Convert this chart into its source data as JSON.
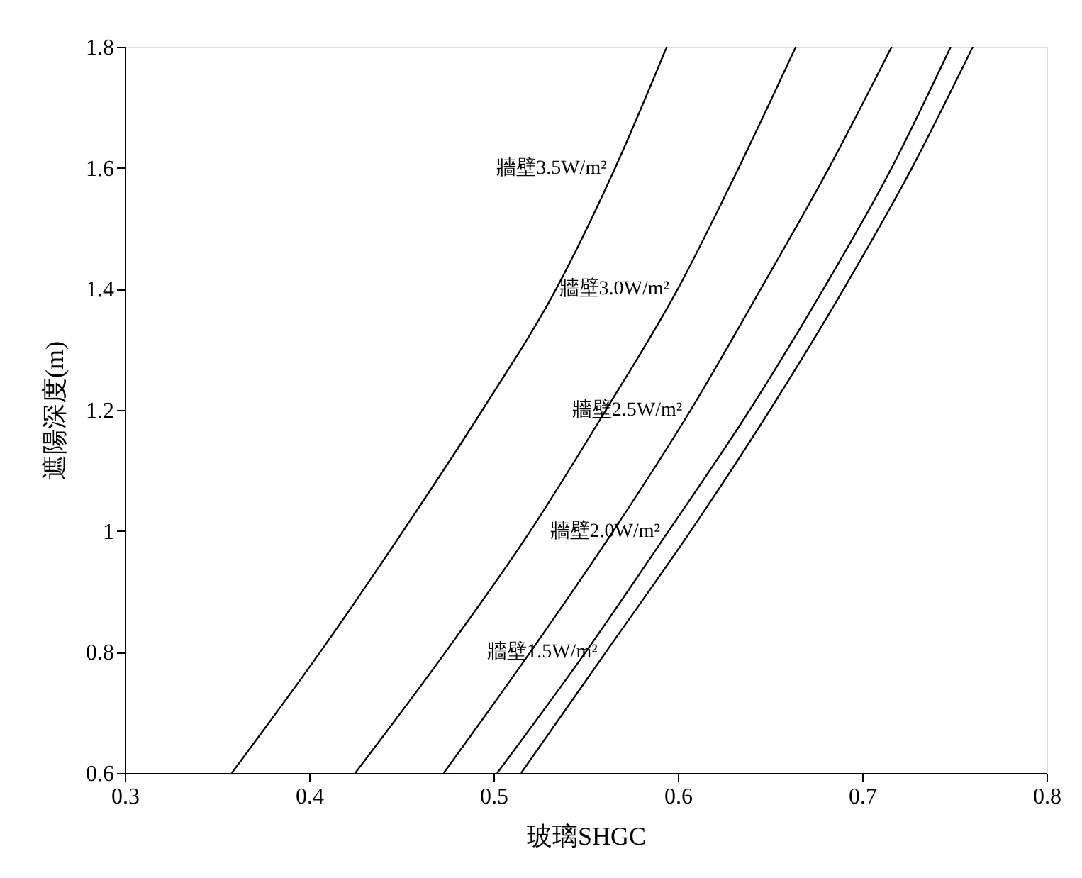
{
  "chart_data": {
    "type": "line",
    "xlabel": "玻璃SHGC",
    "ylabel": "遮陽深度(m)",
    "xlim": [
      0.3,
      0.8
    ],
    "xticks": [
      0.3,
      0.4,
      0.5,
      0.6,
      0.7,
      0.8
    ],
    "ylim": [
      0.6,
      1.8
    ],
    "yticks": [
      0.6,
      0.8,
      1,
      1.2,
      1.4,
      1.6,
      1.8
    ],
    "grid": false,
    "marker": "none",
    "line_style": "solid",
    "series": [
      {
        "name": "牆壁3.5W/m²",
        "color": "#000000",
        "x": [
          0.358,
          0.406,
          0.451,
          0.494,
          0.534,
          0.566,
          0.594
        ],
        "values": [
          0.6,
          0.8,
          1.0,
          1.2,
          1.4,
          1.6,
          1.8
        ]
      },
      {
        "name": "牆壁3.0W/m²",
        "color": "#000000",
        "x": [
          0.425,
          0.474,
          0.52,
          0.561,
          0.6,
          0.633,
          0.664
        ],
        "values": [
          0.6,
          0.8,
          1.0,
          1.2,
          1.4,
          1.6,
          1.8
        ]
      },
      {
        "name": "牆壁2.5W/m²",
        "color": "#000000",
        "x": [
          0.473,
          0.52,
          0.565,
          0.607,
          0.645,
          0.682,
          0.716
        ],
        "values": [
          0.6,
          0.8,
          1.0,
          1.2,
          1.4,
          1.6,
          1.8
        ]
      },
      {
        "name": "牆壁2.0W/m²",
        "color": "#000000",
        "x": [
          0.502,
          0.55,
          0.595,
          0.639,
          0.679,
          0.716,
          0.748
        ],
        "values": [
          0.6,
          0.8,
          1.0,
          1.2,
          1.4,
          1.6,
          1.8
        ]
      },
      {
        "name": "牆壁1.5W/m²",
        "color": "#000000",
        "x": [
          0.515,
          0.561,
          0.607,
          0.65,
          0.69,
          0.727,
          0.76
        ],
        "values": [
          0.6,
          0.8,
          1.0,
          1.2,
          1.4,
          1.6,
          1.8
        ]
      }
    ]
  }
}
